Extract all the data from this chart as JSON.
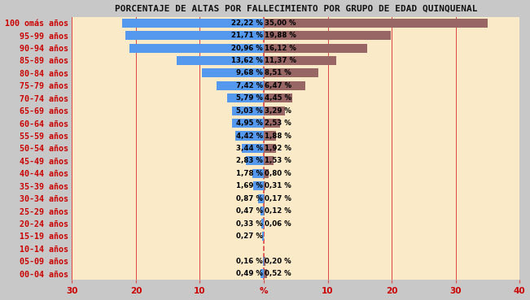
{
  "title": "PORCENTAJE DE ALTAS POR FALLECIMIENTO POR GRUPO DE EDAD QUINQUENAL",
  "cat_labels": [
    "100 omás años",
    "95-99 años",
    "90-94 años",
    "85-89 años",
    "80-84 años",
    "75-79 años",
    "70-74 años",
    "65-69 años",
    "60-64 años",
    "55-59 años",
    "50-54 años",
    "45-49 años",
    "40-44 años",
    "35-39 años",
    "30-34 años",
    "25-29 años",
    "20-24 años",
    "15-19 años",
    "10-14 años",
    "05-09 años",
    "00-04 años"
  ],
  "left_values": [
    22.22,
    21.71,
    20.96,
    13.62,
    9.68,
    7.42,
    5.79,
    5.03,
    4.95,
    4.42,
    3.44,
    2.83,
    1.78,
    1.69,
    0.87,
    0.47,
    0.33,
    0.27,
    0.0,
    0.16,
    0.49
  ],
  "right_values": [
    35.0,
    19.88,
    16.12,
    11.37,
    8.51,
    6.47,
    4.45,
    3.29,
    2.53,
    1.88,
    1.92,
    1.53,
    0.8,
    0.31,
    0.17,
    0.12,
    0.06,
    0.0,
    0.0,
    0.2,
    0.52
  ],
  "left_color": "#5599ee",
  "right_color": "#996666",
  "bg_color": "#faeac8",
  "outer_bg": "#c8c8c8",
  "label_color": "#cc0000",
  "grid_color": "#dd4444",
  "title_color": "#111111",
  "xlim_left": -30,
  "xlim_right": 40,
  "xtick_vals": [
    -30,
    -20,
    -10,
    0,
    10,
    20,
    30,
    40
  ],
  "xtick_labels": [
    "30",
    "20",
    "10",
    "%",
    "10",
    "20",
    "30",
    "40"
  ],
  "bar_height": 0.72,
  "value_fontsize": 6.2,
  "label_fontsize": 7.2,
  "title_fontsize": 8.0
}
